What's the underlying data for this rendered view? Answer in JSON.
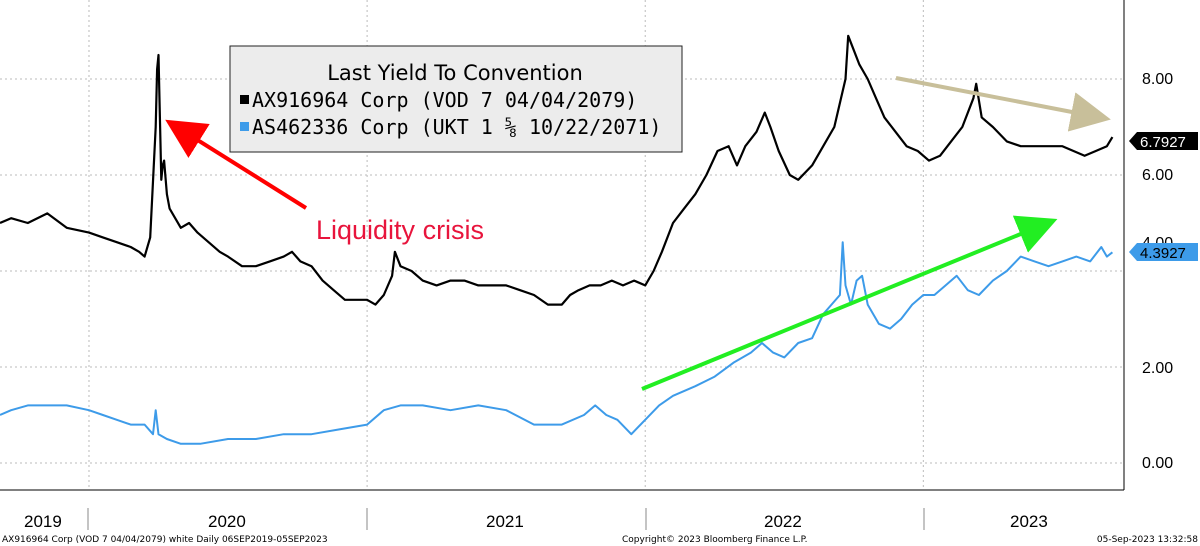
{
  "chart_data": {
    "type": "line",
    "title": "Last Yield To Convention",
    "x_range": [
      "2019-09-06",
      "2023-09-05"
    ],
    "ylim": [
      -0.5,
      9.3
    ],
    "y_ticks": [
      "0.00",
      "2.00",
      "4.00",
      "6.00",
      "8.00"
    ],
    "year_labels": [
      "2019",
      "2020",
      "2021",
      "2022",
      "2023"
    ],
    "legend": {
      "title": "Last Yield To Convention",
      "entries": [
        {
          "label": "AX916964 Corp (VOD 7 04/04/2079)",
          "color": "#000000"
        },
        {
          "label": "AS462336 Corp (UKT 1 ⅝ 10/22/2071)",
          "color": "#3d9be9"
        }
      ]
    },
    "series": [
      {
        "name": "AX916964 Corp (VOD 7 04/04/2079)",
        "color": "#000000",
        "last_value": "6.7927",
        "points": [
          [
            2019.68,
            5.0
          ],
          [
            2019.72,
            5.1
          ],
          [
            2019.78,
            5.0
          ],
          [
            2019.85,
            5.2
          ],
          [
            2019.92,
            4.9
          ],
          [
            2020.0,
            4.8
          ],
          [
            2020.05,
            4.7
          ],
          [
            2020.1,
            4.6
          ],
          [
            2020.15,
            4.5
          ],
          [
            2020.18,
            4.4
          ],
          [
            2020.2,
            4.3
          ],
          [
            2020.22,
            4.7
          ],
          [
            2020.24,
            7.0
          ],
          [
            2020.245,
            8.2
          ],
          [
            2020.25,
            8.5
          ],
          [
            2020.255,
            7.2
          ],
          [
            2020.26,
            5.9
          ],
          [
            2020.265,
            6.2
          ],
          [
            2020.27,
            6.3
          ],
          [
            2020.28,
            5.6
          ],
          [
            2020.29,
            5.3
          ],
          [
            2020.31,
            5.1
          ],
          [
            2020.33,
            4.9
          ],
          [
            2020.36,
            5.0
          ],
          [
            2020.39,
            4.8
          ],
          [
            2020.43,
            4.6
          ],
          [
            2020.47,
            4.4
          ],
          [
            2020.5,
            4.3
          ],
          [
            2020.55,
            4.1
          ],
          [
            2020.6,
            4.1
          ],
          [
            2020.65,
            4.2
          ],
          [
            2020.7,
            4.3
          ],
          [
            2020.73,
            4.4
          ],
          [
            2020.76,
            4.2
          ],
          [
            2020.8,
            4.1
          ],
          [
            2020.84,
            3.8
          ],
          [
            2020.88,
            3.6
          ],
          [
            2020.92,
            3.4
          ],
          [
            2020.96,
            3.4
          ],
          [
            2021.0,
            3.4
          ],
          [
            2021.03,
            3.3
          ],
          [
            2021.06,
            3.5
          ],
          [
            2021.09,
            3.9
          ],
          [
            2021.1,
            4.4
          ],
          [
            2021.12,
            4.1
          ],
          [
            2021.16,
            4.0
          ],
          [
            2021.2,
            3.8
          ],
          [
            2021.25,
            3.7
          ],
          [
            2021.3,
            3.8
          ],
          [
            2021.35,
            3.8
          ],
          [
            2021.4,
            3.7
          ],
          [
            2021.45,
            3.7
          ],
          [
            2021.5,
            3.7
          ],
          [
            2021.55,
            3.6
          ],
          [
            2021.6,
            3.5
          ],
          [
            2021.65,
            3.3
          ],
          [
            2021.7,
            3.3
          ],
          [
            2021.73,
            3.5
          ],
          [
            2021.76,
            3.6
          ],
          [
            2021.8,
            3.7
          ],
          [
            2021.84,
            3.7
          ],
          [
            2021.88,
            3.8
          ],
          [
            2021.92,
            3.7
          ],
          [
            2021.96,
            3.8
          ],
          [
            2022.0,
            3.7
          ],
          [
            2022.03,
            4.0
          ],
          [
            2022.06,
            4.4
          ],
          [
            2022.1,
            5.0
          ],
          [
            2022.14,
            5.3
          ],
          [
            2022.18,
            5.6
          ],
          [
            2022.22,
            6.0
          ],
          [
            2022.26,
            6.5
          ],
          [
            2022.3,
            6.6
          ],
          [
            2022.33,
            6.2
          ],
          [
            2022.36,
            6.6
          ],
          [
            2022.4,
            6.9
          ],
          [
            2022.43,
            7.3
          ],
          [
            2022.45,
            7.0
          ],
          [
            2022.48,
            6.5
          ],
          [
            2022.52,
            6.0
          ],
          [
            2022.55,
            5.9
          ],
          [
            2022.6,
            6.2
          ],
          [
            2022.64,
            6.6
          ],
          [
            2022.68,
            7.0
          ],
          [
            2022.7,
            7.5
          ],
          [
            2022.72,
            8.0
          ],
          [
            2022.73,
            8.9
          ],
          [
            2022.75,
            8.6
          ],
          [
            2022.77,
            8.3
          ],
          [
            2022.8,
            8.0
          ],
          [
            2022.83,
            7.6
          ],
          [
            2022.86,
            7.2
          ],
          [
            2022.9,
            6.9
          ],
          [
            2022.94,
            6.6
          ],
          [
            2022.98,
            6.5
          ],
          [
            2023.02,
            6.3
          ],
          [
            2023.06,
            6.4
          ],
          [
            2023.1,
            6.7
          ],
          [
            2023.14,
            7.0
          ],
          [
            2023.18,
            7.6
          ],
          [
            2023.19,
            7.9
          ],
          [
            2023.21,
            7.2
          ],
          [
            2023.25,
            7.0
          ],
          [
            2023.3,
            6.7
          ],
          [
            2023.35,
            6.6
          ],
          [
            2023.4,
            6.6
          ],
          [
            2023.45,
            6.6
          ],
          [
            2023.5,
            6.6
          ],
          [
            2023.54,
            6.5
          ],
          [
            2023.58,
            6.4
          ],
          [
            2023.62,
            6.5
          ],
          [
            2023.66,
            6.6
          ],
          [
            2023.68,
            6.79
          ]
        ]
      },
      {
        "name": "AS462336 Corp (UKT 1 ⅝ 10/22/2071)",
        "color": "#3d9be9",
        "last_value": "4.3927",
        "points": [
          [
            2019.68,
            1.0
          ],
          [
            2019.72,
            1.1
          ],
          [
            2019.78,
            1.2
          ],
          [
            2019.85,
            1.2
          ],
          [
            2019.92,
            1.2
          ],
          [
            2020.0,
            1.1
          ],
          [
            2020.05,
            1.0
          ],
          [
            2020.1,
            0.9
          ],
          [
            2020.15,
            0.8
          ],
          [
            2020.2,
            0.8
          ],
          [
            2020.23,
            0.6
          ],
          [
            2020.24,
            1.1
          ],
          [
            2020.25,
            0.6
          ],
          [
            2020.28,
            0.5
          ],
          [
            2020.33,
            0.4
          ],
          [
            2020.4,
            0.4
          ],
          [
            2020.5,
            0.5
          ],
          [
            2020.6,
            0.5
          ],
          [
            2020.7,
            0.6
          ],
          [
            2020.8,
            0.6
          ],
          [
            2020.9,
            0.7
          ],
          [
            2021.0,
            0.8
          ],
          [
            2021.06,
            1.1
          ],
          [
            2021.12,
            1.2
          ],
          [
            2021.2,
            1.2
          ],
          [
            2021.3,
            1.1
          ],
          [
            2021.4,
            1.2
          ],
          [
            2021.5,
            1.1
          ],
          [
            2021.6,
            0.8
          ],
          [
            2021.7,
            0.8
          ],
          [
            2021.78,
            1.0
          ],
          [
            2021.82,
            1.2
          ],
          [
            2021.86,
            1.0
          ],
          [
            2021.9,
            0.9
          ],
          [
            2021.95,
            0.6
          ],
          [
            2022.0,
            0.9
          ],
          [
            2022.05,
            1.2
          ],
          [
            2022.1,
            1.4
          ],
          [
            2022.18,
            1.6
          ],
          [
            2022.25,
            1.8
          ],
          [
            2022.32,
            2.1
          ],
          [
            2022.38,
            2.3
          ],
          [
            2022.42,
            2.5
          ],
          [
            2022.46,
            2.3
          ],
          [
            2022.5,
            2.2
          ],
          [
            2022.55,
            2.5
          ],
          [
            2022.6,
            2.6
          ],
          [
            2022.64,
            3.1
          ],
          [
            2022.67,
            3.3
          ],
          [
            2022.7,
            3.5
          ],
          [
            2022.71,
            4.6
          ],
          [
            2022.72,
            3.7
          ],
          [
            2022.74,
            3.3
          ],
          [
            2022.76,
            3.8
          ],
          [
            2022.78,
            3.9
          ],
          [
            2022.8,
            3.3
          ],
          [
            2022.84,
            2.9
          ],
          [
            2022.88,
            2.8
          ],
          [
            2022.92,
            3.0
          ],
          [
            2022.96,
            3.3
          ],
          [
            2023.0,
            3.5
          ],
          [
            2023.04,
            3.5
          ],
          [
            2023.08,
            3.7
          ],
          [
            2023.12,
            3.9
          ],
          [
            2023.16,
            3.6
          ],
          [
            2023.2,
            3.5
          ],
          [
            2023.25,
            3.8
          ],
          [
            2023.3,
            4.0
          ],
          [
            2023.35,
            4.3
          ],
          [
            2023.4,
            4.2
          ],
          [
            2023.45,
            4.1
          ],
          [
            2023.5,
            4.2
          ],
          [
            2023.55,
            4.3
          ],
          [
            2023.6,
            4.2
          ],
          [
            2023.64,
            4.5
          ],
          [
            2023.66,
            4.3
          ],
          [
            2023.68,
            4.39
          ]
        ]
      }
    ],
    "annotations": [
      {
        "text": "Liquidity crisis",
        "color": "#e8143c"
      },
      {
        "text": "",
        "color": "#ff0000",
        "kind": "red-arrow"
      },
      {
        "text": "",
        "color": "#22ee22",
        "kind": "green-arrow"
      },
      {
        "text": "",
        "color": "#c8bf9a",
        "kind": "tan-arrow"
      }
    ]
  },
  "footer": {
    "left": "AX916964 Corp (VOD 7 04/04/2079) white  Daily 06SEP2019-05SEP2023",
    "center": "Copyright© 2023 Bloomberg Finance L.P.",
    "right": "05-Sep-2023 13:32:58"
  }
}
